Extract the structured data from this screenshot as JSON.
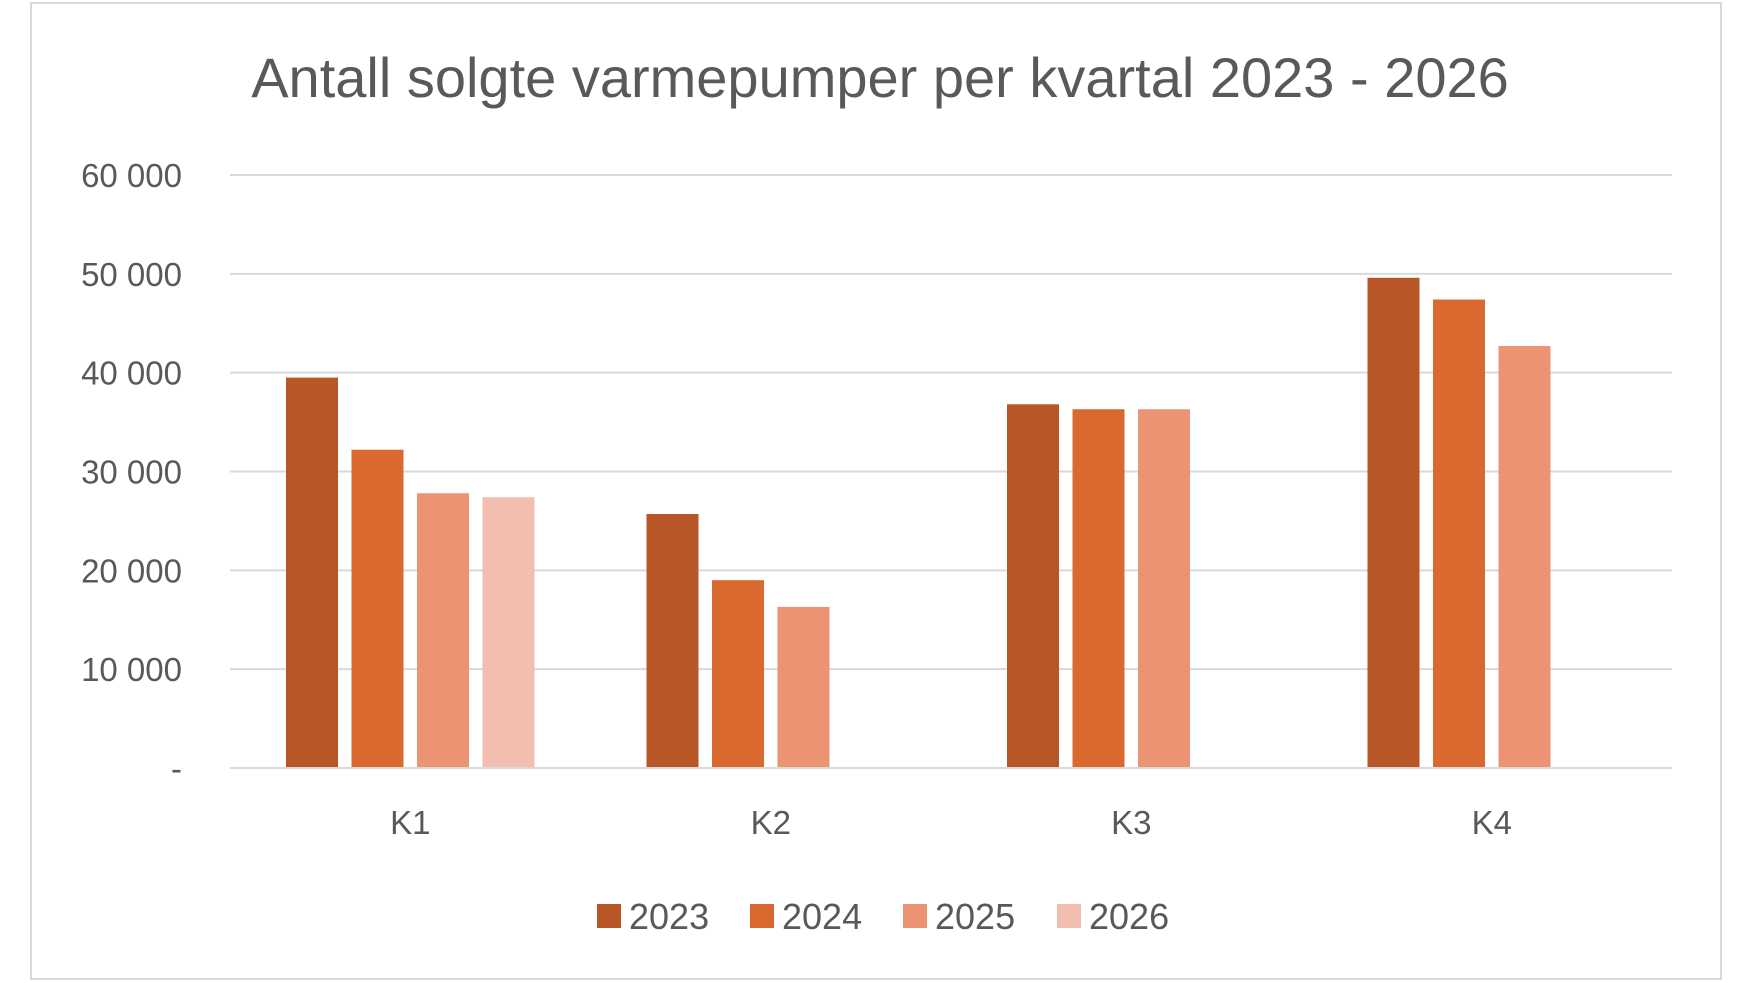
{
  "chart_data": {
    "type": "bar",
    "title": "Antall solgte varmepumper per kvartal 2023 - 2026",
    "xlabel": "",
    "ylabel": "",
    "categories": [
      "K1",
      "K2",
      "K3",
      "K4"
    ],
    "series": [
      {
        "name": "2023",
        "values": [
          39500,
          25700,
          36800,
          49600
        ],
        "color": "#b85627"
      },
      {
        "name": "2024",
        "values": [
          32200,
          19000,
          36300,
          47400
        ],
        "color": "#d9692e"
      },
      {
        "name": "2025",
        "values": [
          27800,
          16300,
          36300,
          42700
        ],
        "color": "#ec9373"
      },
      {
        "name": "2026",
        "values": [
          27400,
          null,
          null,
          null
        ],
        "color": "#f3bdb0"
      }
    ],
    "ylim": [
      0,
      60000
    ],
    "yticks": [
      0,
      10000,
      20000,
      30000,
      40000,
      50000,
      60000
    ],
    "ytick_labels": [
      "-",
      "10 000",
      "20 000",
      "30 000",
      "40 000",
      "50 000",
      "60 000"
    ],
    "grid": true,
    "legend_position": "bottom"
  }
}
